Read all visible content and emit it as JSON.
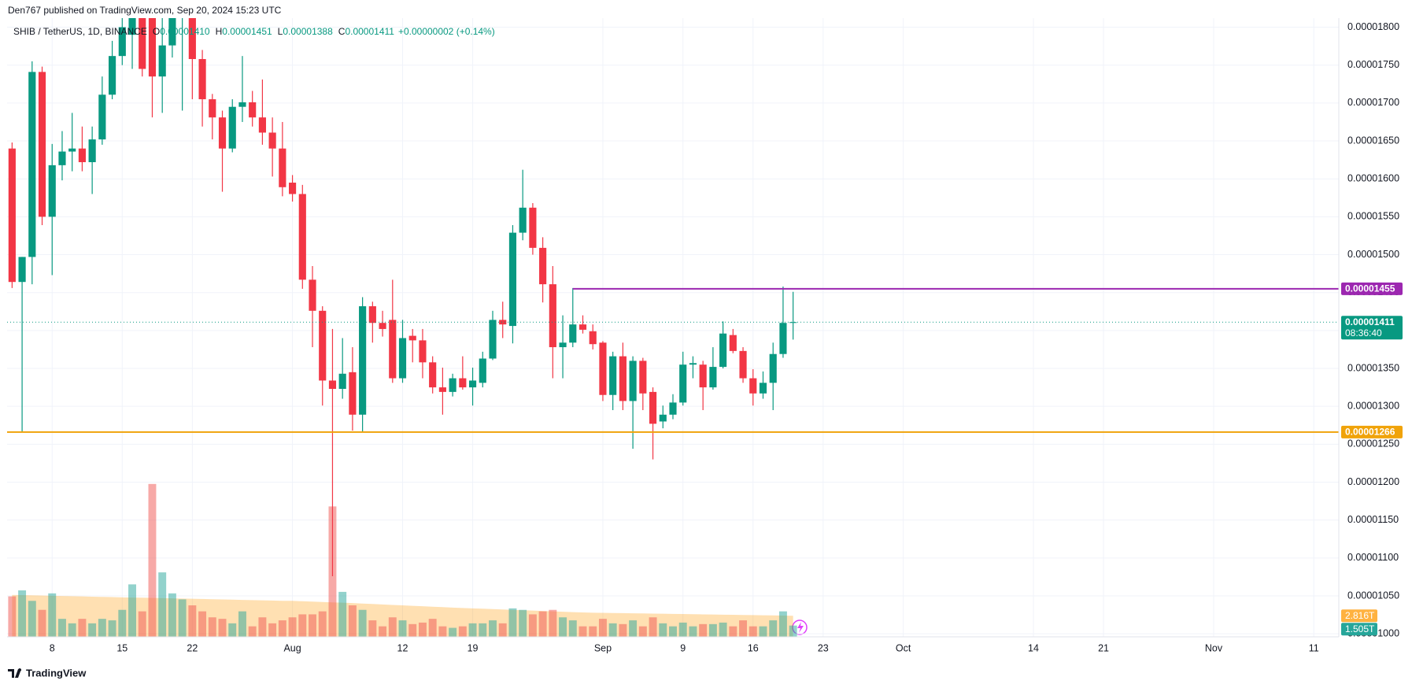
{
  "header": {
    "byline": "Den767 published on TradingView.com, Sep 20, 2024 15:23 UTC"
  },
  "footer": {
    "brand": "TradingView"
  },
  "chart_data": {
    "type": "candlestick",
    "title": "SHIB / TetherUS, 1D, BINANCE",
    "legend_values": [
      {
        "key": "O",
        "value": "0.00001410"
      },
      {
        "key": "H",
        "value": "0.00001451"
      },
      {
        "key": "L",
        "value": "0.00001388"
      },
      {
        "key": "C",
        "value": "0.00001411"
      }
    ],
    "change": "+0.00000002 (+0.14%)",
    "up_color": "#089981",
    "down_color": "#f23645",
    "grid": true,
    "grid_color": "#f0f3fa",
    "x": [
      "2024-07-04",
      "2024-07-05",
      "2024-07-06",
      "2024-07-07",
      "2024-07-08",
      "2024-07-09",
      "2024-07-10",
      "2024-07-11",
      "2024-07-12",
      "2024-07-13",
      "2024-07-14",
      "2024-07-15",
      "2024-07-16",
      "2024-07-17",
      "2024-07-18",
      "2024-07-19",
      "2024-07-20",
      "2024-07-21",
      "2024-07-22",
      "2024-07-23",
      "2024-07-24",
      "2024-07-25",
      "2024-07-26",
      "2024-07-27",
      "2024-07-28",
      "2024-07-29",
      "2024-07-30",
      "2024-07-31",
      "2024-08-01",
      "2024-08-02",
      "2024-08-03",
      "2024-08-04",
      "2024-08-05",
      "2024-08-06",
      "2024-08-07",
      "2024-08-08",
      "2024-08-09",
      "2024-08-10",
      "2024-08-11",
      "2024-08-12",
      "2024-08-13",
      "2024-08-14",
      "2024-08-15",
      "2024-08-16",
      "2024-08-17",
      "2024-08-18",
      "2024-08-19",
      "2024-08-20",
      "2024-08-21",
      "2024-08-22",
      "2024-08-23",
      "2024-08-24",
      "2024-08-25",
      "2024-08-26",
      "2024-08-27",
      "2024-08-28",
      "2024-08-29",
      "2024-08-30",
      "2024-08-31",
      "2024-09-01",
      "2024-09-02",
      "2024-09-03",
      "2024-09-04",
      "2024-09-05",
      "2024-09-06",
      "2024-09-07",
      "2024-09-08",
      "2024-09-09",
      "2024-09-10",
      "2024-09-11",
      "2024-09-12",
      "2024-09-13",
      "2024-09-14",
      "2024-09-15",
      "2024-09-16",
      "2024-09-17",
      "2024-09-18",
      "2024-09-19",
      "2024-09-20"
    ],
    "open": [
      1.64e-05,
      1.464e-05,
      1.497e-05,
      1.741e-05,
      1.55e-05,
      1.618e-05,
      1.636e-05,
      1.64e-05,
      1.622e-05,
      1.652e-05,
      1.711e-05,
      1.762e-05,
      1.79e-05,
      1.83e-05,
      1.82e-05,
      1.735e-05,
      1.776e-05,
      1.815e-05,
      1.822e-05,
      1.758e-05,
      1.705e-05,
      1.681e-05,
      1.64e-05,
      1.695e-05,
      1.701e-05,
      1.681e-05,
      1.661e-05,
      1.64e-05,
      1.595e-05,
      1.58e-05,
      1.467e-05,
      1.426e-05,
      1.334e-05,
      1.323e-05,
      1.345e-05,
      1.289e-05,
      1.432e-05,
      1.41e-05,
      1.414e-05,
      1.337e-05,
      1.393e-05,
      1.387e-05,
      1.358e-05,
      1.325e-05,
      1.319e-05,
      1.337e-05,
      1.325e-05,
      1.331e-05,
      1.363e-05,
      1.414e-05,
      1.406e-05,
      1.529e-05,
      1.562e-05,
      1.509e-05,
      1.461e-05,
      1.378e-05,
      1.384e-05,
      1.408e-05,
      1.399e-05,
      1.384e-05,
      1.315e-05,
      1.366e-05,
      1.307e-05,
      1.36e-05,
      1.319e-05,
      1.28e-05,
      1.289e-05,
      1.305e-05,
      1.355e-05,
      1.355e-05,
      1.325e-05,
      1.352e-05,
      1.394e-05,
      1.373e-05,
      1.337e-05,
      1.317e-05,
      1.331e-05,
      1.369e-05,
      1.41e-05
    ],
    "high": [
      1.648e-05,
      1.497e-05,
      1.755e-05,
      1.748e-05,
      1.646e-05,
      1.663e-05,
      1.687e-05,
      1.669e-05,
      1.669e-05,
      1.735e-05,
      1.782e-05,
      1.812e-05,
      1.84e-05,
      1.845e-05,
      1.83e-05,
      1.812e-05,
      1.83e-05,
      1.84e-05,
      1.835e-05,
      1.77e-05,
      1.712e-05,
      1.69e-05,
      1.705e-05,
      1.762e-05,
      1.716e-05,
      1.731e-05,
      1.681e-05,
      1.675e-05,
      1.605e-05,
      1.592e-05,
      1.485e-05,
      1.432e-05,
      1.402e-05,
      1.39e-05,
      1.378e-05,
      1.444e-05,
      1.438e-05,
      1.426e-05,
      1.467e-05,
      1.414e-05,
      1.402e-05,
      1.402e-05,
      1.366e-05,
      1.351e-05,
      1.343e-05,
      1.366e-05,
      1.351e-05,
      1.372e-05,
      1.426e-05,
      1.438e-05,
      1.539e-05,
      1.612e-05,
      1.568e-05,
      1.523e-05,
      1.485e-05,
      1.42e-05,
      1.456e-05,
      1.42e-05,
      1.408e-05,
      1.386e-05,
      1.372e-05,
      1.384e-05,
      1.366e-05,
      1.364e-05,
      1.325e-05,
      1.301e-05,
      1.316e-05,
      1.372e-05,
      1.366e-05,
      1.36e-05,
      1.378e-05,
      1.412e-05,
      1.402e-05,
      1.378e-05,
      1.349e-05,
      1.346e-05,
      1.384e-05,
      1.458e-05,
      1.451e-05
    ],
    "low": [
      1.456e-05,
      1.266e-05,
      1.461e-05,
      1.539e-05,
      1.473e-05,
      1.598e-05,
      1.61e-05,
      1.61e-05,
      1.58e-05,
      1.645e-05,
      1.705e-05,
      1.75e-05,
      1.745e-05,
      1.735e-05,
      1.681e-05,
      1.687e-05,
      1.76e-05,
      1.69e-05,
      1.705e-05,
      1.669e-05,
      1.652e-05,
      1.583e-05,
      1.635e-05,
      1.675e-05,
      1.669e-05,
      1.645e-05,
      1.603e-05,
      1.577e-05,
      1.57e-05,
      1.455e-05,
      1.378e-05,
      1.301e-05,
      1.076e-05,
      1.31e-05,
      1.268e-05,
      1.266e-05,
      1.384e-05,
      1.392e-05,
      1.331e-05,
      1.331e-05,
      1.358e-05,
      1.337e-05,
      1.317e-05,
      1.289e-05,
      1.313e-05,
      1.322e-05,
      1.301e-05,
      1.325e-05,
      1.361e-05,
      1.39e-05,
      1.383e-05,
      1.519e-05,
      1.5e-05,
      1.437e-05,
      1.337e-05,
      1.337e-05,
      1.378e-05,
      1.396e-05,
      1.375e-05,
      1.307e-05,
      1.295e-05,
      1.295e-05,
      1.244e-05,
      1.295e-05,
      1.23e-05,
      1.271e-05,
      1.283e-05,
      1.301e-05,
      1.337e-05,
      1.295e-05,
      1.322e-05,
      1.35e-05,
      1.37e-05,
      1.331e-05,
      1.301e-05,
      1.31e-05,
      1.295e-05,
      1.364e-05,
      1.388e-05
    ],
    "close": [
      1.464e-05,
      1.497e-05,
      1.741e-05,
      1.55e-05,
      1.618e-05,
      1.636e-05,
      1.64e-05,
      1.622e-05,
      1.652e-05,
      1.711e-05,
      1.762e-05,
      1.8e-05,
      1.83e-05,
      1.745e-05,
      1.735e-05,
      1.776e-05,
      1.815e-05,
      1.822e-05,
      1.758e-05,
      1.705e-05,
      1.681e-05,
      1.64e-05,
      1.695e-05,
      1.701e-05,
      1.681e-05,
      1.661e-05,
      1.64e-05,
      1.589e-05,
      1.58e-05,
      1.467e-05,
      1.426e-05,
      1.334e-05,
      1.323e-05,
      1.343e-05,
      1.289e-05,
      1.432e-05,
      1.41e-05,
      1.402e-05,
      1.337e-05,
      1.39e-05,
      1.387e-05,
      1.358e-05,
      1.325e-05,
      1.319e-05,
      1.337e-05,
      1.325e-05,
      1.334e-05,
      1.363e-05,
      1.414e-05,
      1.408e-05,
      1.529e-05,
      1.562e-05,
      1.509e-05,
      1.461e-05,
      1.378e-05,
      1.384e-05,
      1.408e-05,
      1.401e-05,
      1.382e-05,
      1.315e-05,
      1.366e-05,
      1.307e-05,
      1.36e-05,
      1.317e-05,
      1.277e-05,
      1.289e-05,
      1.305e-05,
      1.355e-05,
      1.357e-05,
      1.325e-05,
      1.352e-05,
      1.396e-05,
      1.373e-05,
      1.337e-05,
      1.317e-05,
      1.331e-05,
      1.369e-05,
      1.41e-05,
      1.411e-05
    ],
    "xlim": [
      "2024-07-03T12:00:00Z",
      "2024-11-13T12:00:00Z"
    ],
    "xticks": [
      {
        "value": "2024-07-08",
        "label": "8"
      },
      {
        "value": "2024-07-15",
        "label": "15"
      },
      {
        "value": "2024-07-22",
        "label": "22"
      },
      {
        "value": "2024-08-01",
        "label": "Aug"
      },
      {
        "value": "2024-08-12",
        "label": "12"
      },
      {
        "value": "2024-08-19",
        "label": "19"
      },
      {
        "value": "2024-09-01",
        "label": "Sep"
      },
      {
        "value": "2024-09-09",
        "label": "9"
      },
      {
        "value": "2024-09-16",
        "label": "16"
      },
      {
        "value": "2024-09-23",
        "label": "23"
      },
      {
        "value": "2024-10-01",
        "label": "Oct"
      },
      {
        "value": "2024-10-14",
        "label": "14"
      },
      {
        "value": "2024-10-21",
        "label": "21"
      },
      {
        "value": "2024-11-01",
        "label": "Nov"
      },
      {
        "value": "2024-11-11",
        "label": "11"
      }
    ],
    "ylim": [
      9.96e-06,
      1.812e-05
    ],
    "yticks": [
      {
        "value": 1e-05,
        "label": "0.00001000"
      },
      {
        "value": 1.05e-05,
        "label": "0.00001050"
      },
      {
        "value": 1.1e-05,
        "label": "0.00001100"
      },
      {
        "value": 1.15e-05,
        "label": "0.00001150"
      },
      {
        "value": 1.2e-05,
        "label": "0.00001200"
      },
      {
        "value": 1.25e-05,
        "label": "0.00001250"
      },
      {
        "value": 1.3e-05,
        "label": "0.00001300"
      },
      {
        "value": 1.35e-05,
        "label": "0.00001350"
      },
      {
        "value": 1.4e-05,
        "label": "0.00001400"
      },
      {
        "value": 1.45e-05,
        "label": "0.00001450"
      },
      {
        "value": 1.5e-05,
        "label": "0.00001500"
      },
      {
        "value": 1.55e-05,
        "label": "0.00001550"
      },
      {
        "value": 1.6e-05,
        "label": "0.00001600"
      },
      {
        "value": 1.65e-05,
        "label": "0.00001650"
      },
      {
        "value": 1.7e-05,
        "label": "0.00001700"
      },
      {
        "value": 1.75e-05,
        "label": "0.00001750"
      },
      {
        "value": 1.8e-05,
        "label": "0.00001800"
      }
    ],
    "hlines": [
      {
        "value": 1.455e-05,
        "label": "0.00001455",
        "color": "#9c27b0",
        "start": "2024-08-29"
      },
      {
        "value": 1.266e-05,
        "label": "0.00001266",
        "color": "#f0a30a"
      }
    ],
    "last_price": {
      "value": 1.411e-05,
      "label": "0.00001411",
      "countdown": "08:36:40"
    },
    "volume": {
      "ylim": [
        0,
        25
      ],
      "up_color": "#26a69a",
      "down_color": "#ef5350",
      "ma_color": "#ff9800",
      "values": [
        5.4,
        6.2,
        4.8,
        3.6,
        5.8,
        2.4,
        1.8,
        2.4,
        1.8,
        2.4,
        2.2,
        3.6,
        7.0,
        3.4,
        20.4,
        8.6,
        5.8,
        5.0,
        4.2,
        3.4,
        2.6,
        2.4,
        1.8,
        3.4,
        1.4,
        2.6,
        1.8,
        2.2,
        2.6,
        3.0,
        3.0,
        3.4,
        17.4,
        6.0,
        4.2,
        3.6,
        2.2,
        1.4,
        2.6,
        2.2,
        1.7,
        1.9,
        2.4,
        1.4,
        1.2,
        1.4,
        1.8,
        1.8,
        2.2,
        1.8,
        3.8,
        3.6,
        3.0,
        3.4,
        3.6,
        2.6,
        2.2,
        1.4,
        1.4,
        2.4,
        1.8,
        1.7,
        2.2,
        1.4,
        2.6,
        1.8,
        1.4,
        1.9,
        1.4,
        1.7,
        1.7,
        1.9,
        1.4,
        2.2,
        1.4,
        1.4,
        2.2,
        3.4,
        1.505
      ],
      "ma_values": [
        5.6,
        5.57,
        5.54,
        5.51,
        5.48,
        5.45,
        5.42,
        5.39,
        5.36,
        5.33,
        5.3,
        5.27,
        5.24,
        5.22,
        5.2,
        5.17,
        5.14,
        5.11,
        5.08,
        5.05,
        5.02,
        4.99,
        4.96,
        4.93,
        4.9,
        4.87,
        4.84,
        4.81,
        4.8,
        4.75,
        4.7,
        4.65,
        4.6,
        4.55,
        4.5,
        4.44,
        4.38,
        4.32,
        4.26,
        4.2,
        4.14,
        4.08,
        4.02,
        3.96,
        3.9,
        3.85,
        3.8,
        3.75,
        3.7,
        3.65,
        3.6,
        3.55,
        3.5,
        3.45,
        3.4,
        3.35,
        3.3,
        3.26,
        3.22,
        3.2,
        3.18,
        3.16,
        3.14,
        3.12,
        3.1,
        3.08,
        3.06,
        3.04,
        3.02,
        3.0,
        2.98,
        2.96,
        2.94,
        2.92,
        2.9,
        2.88,
        2.86,
        2.84,
        2.816
      ],
      "last_label": "1.505T",
      "ma_last_label": "2.816T"
    }
  }
}
